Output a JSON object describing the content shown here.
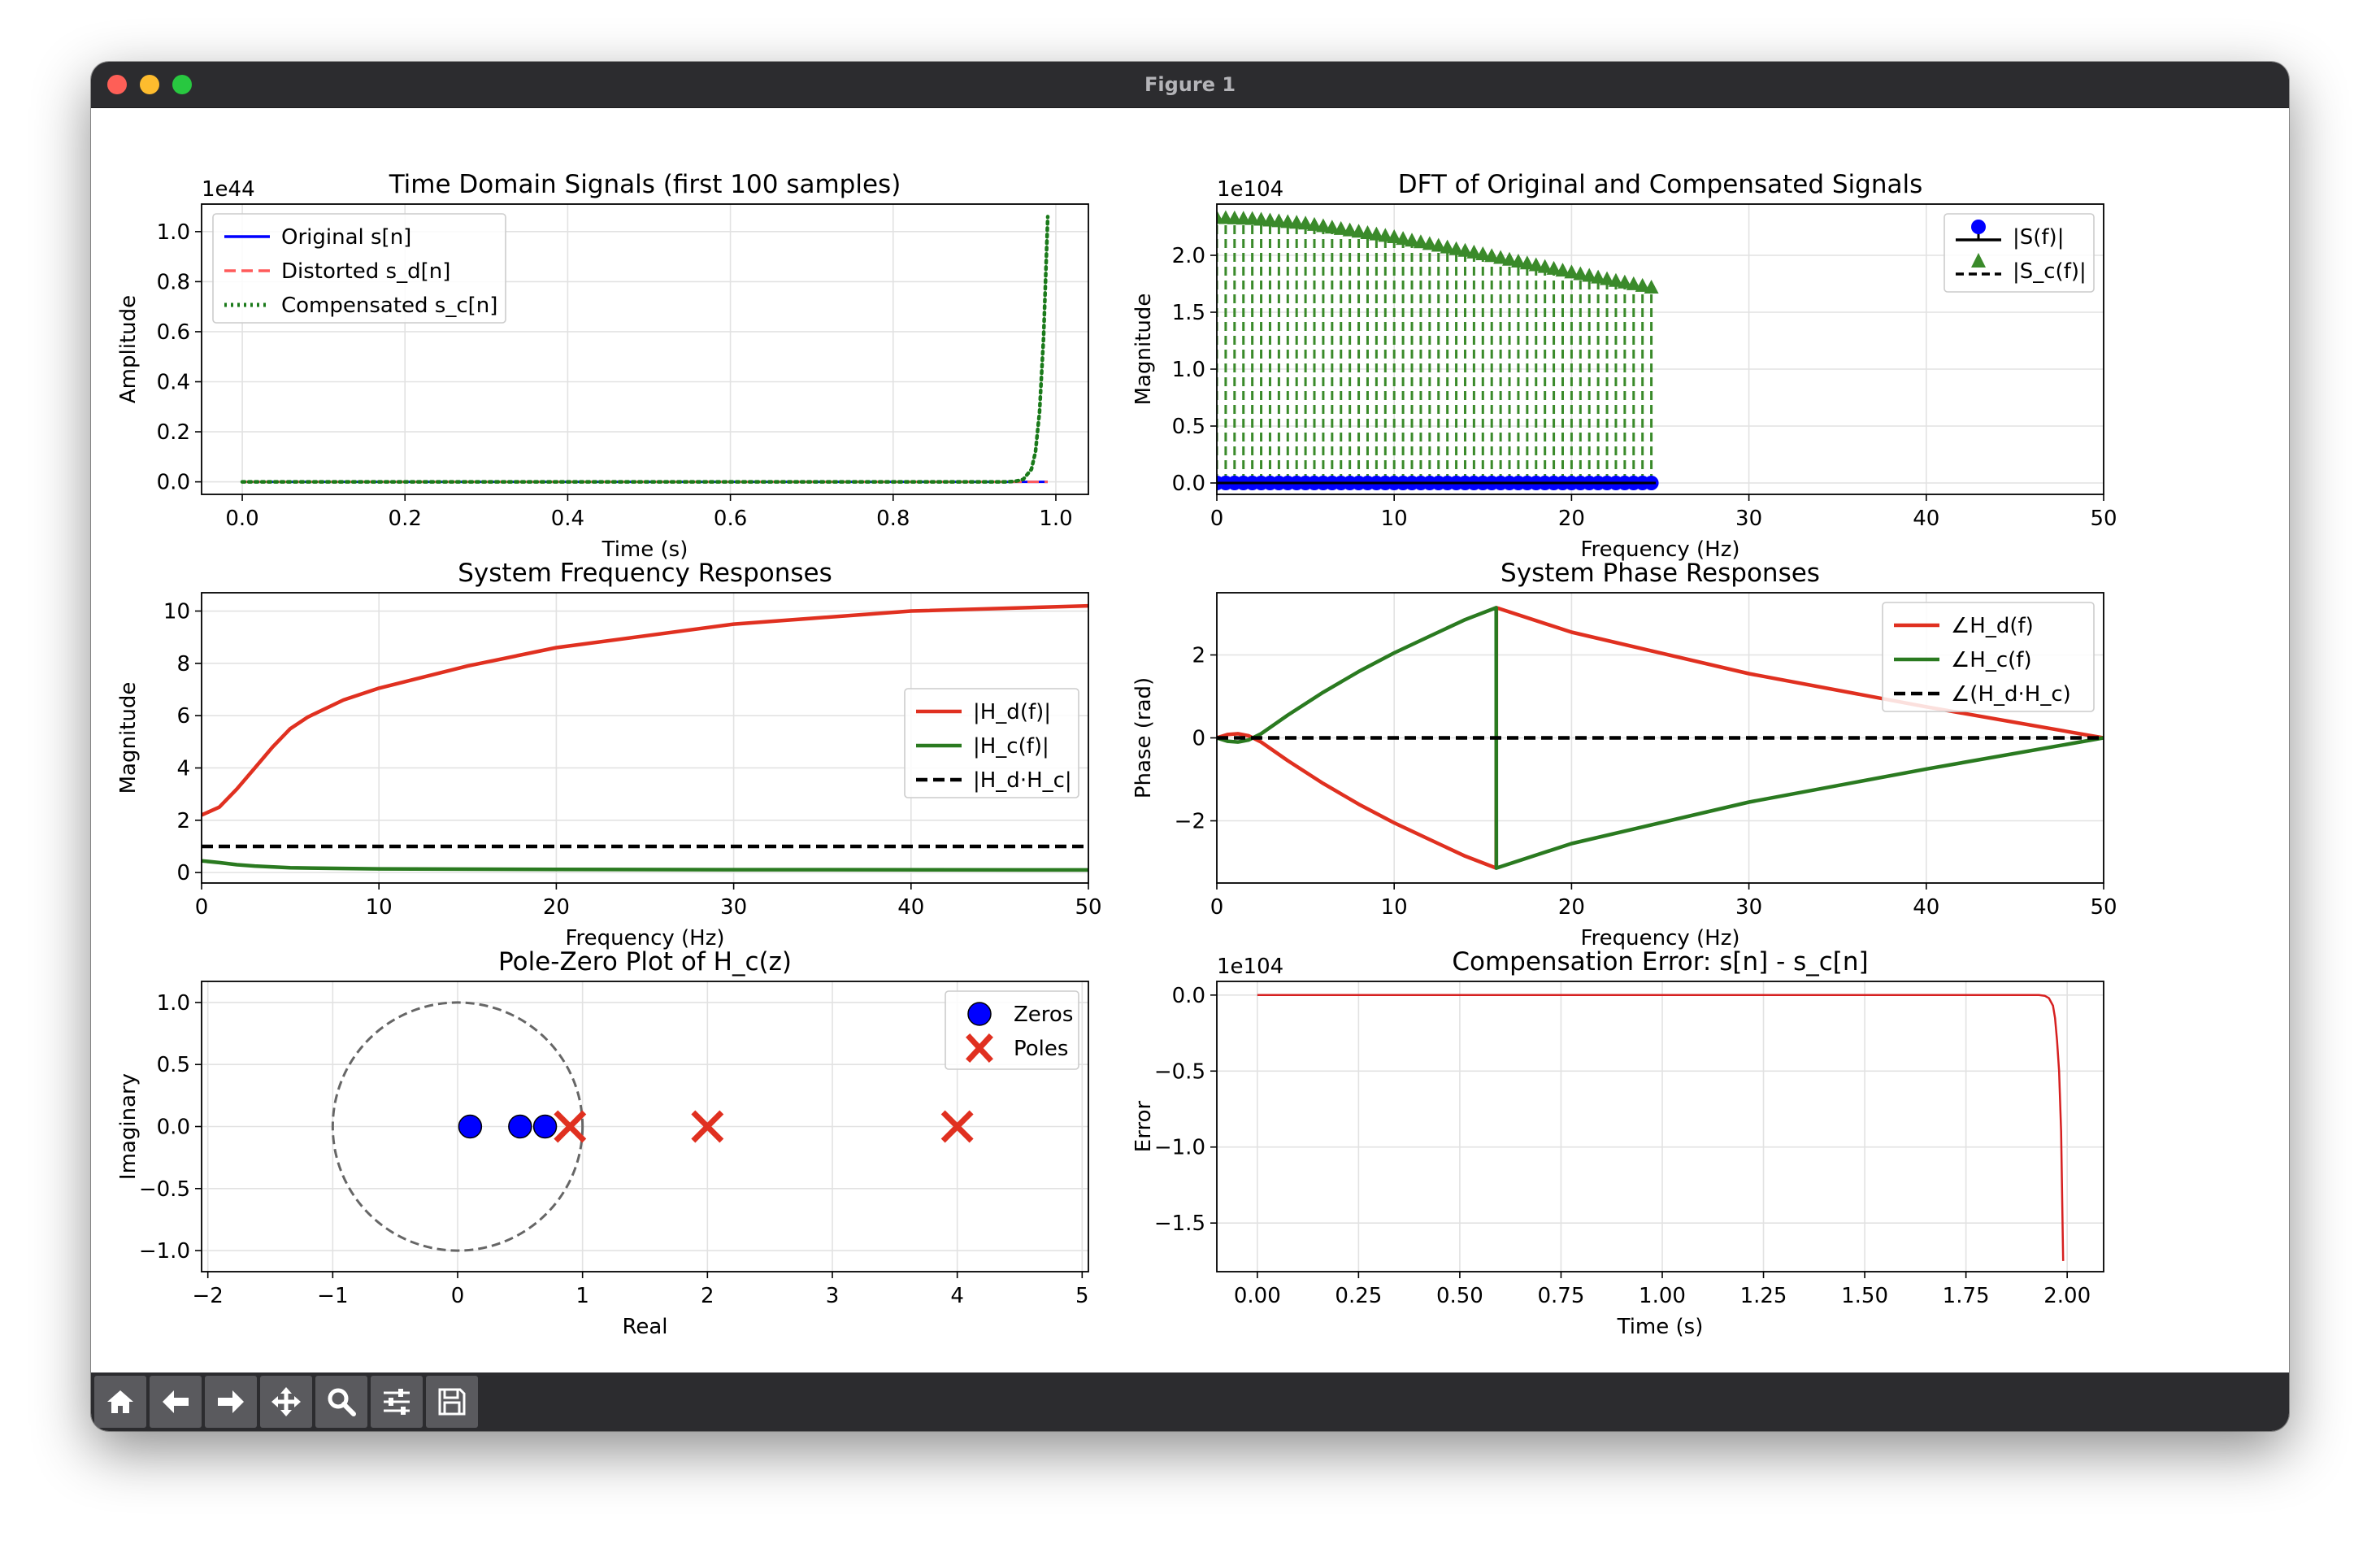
{
  "window": {
    "title": "Figure 1"
  },
  "toolbar": {
    "buttons": [
      {
        "name": "home",
        "icon": "home-icon"
      },
      {
        "name": "back",
        "icon": "arrow-left-icon"
      },
      {
        "name": "forward",
        "icon": "arrow-right-icon"
      },
      {
        "name": "pan",
        "icon": "move-icon"
      },
      {
        "name": "zoom",
        "icon": "magnifier-icon"
      },
      {
        "name": "configure",
        "icon": "sliders-icon"
      },
      {
        "name": "save",
        "icon": "floppy-disk-icon"
      }
    ]
  },
  "chart_data": [
    {
      "id": "time-domain",
      "type": "line",
      "title": "Time Domain Signals (first 100 samples)",
      "xlabel": "Time (s)",
      "ylabel": "Amplitude",
      "offset_text": "1e44",
      "xlim": [
        -0.05,
        1.04
      ],
      "ylim": [
        -0.05,
        1.11
      ],
      "xticks": [
        0.0,
        0.2,
        0.4,
        0.6,
        0.8,
        1.0
      ],
      "xtick_labels": [
        "0.0",
        "0.2",
        "0.4",
        "0.6",
        "0.8",
        "1.0"
      ],
      "yticks": [
        0.0,
        0.2,
        0.4,
        0.6,
        0.8,
        1.0
      ],
      "ytick_labels": [
        "0.0",
        "0.2",
        "0.4",
        "0.6",
        "0.8",
        "1.0"
      ],
      "grid": true,
      "legend_position": "upper-left",
      "series": [
        {
          "name": "Original s[n]",
          "color": "#0000ff",
          "style": "solid",
          "x": [
            0.0,
            0.99
          ],
          "y": [
            0.0,
            0.0
          ]
        },
        {
          "name": "Distorted s_d[n]",
          "color": "#ff5a5a",
          "style": "dashed",
          "x": [
            0.0,
            0.99
          ],
          "y": [
            0.0,
            0.0
          ]
        },
        {
          "name": "Compensated s_c[n]",
          "color": "#1a7a1a",
          "style": "dotted",
          "x": [
            0.0,
            0.94,
            0.95,
            0.96,
            0.97,
            0.975,
            0.98,
            0.985,
            0.99
          ],
          "y": [
            0.0,
            0.0,
            0.002,
            0.01,
            0.05,
            0.12,
            0.28,
            0.58,
            1.06
          ]
        }
      ]
    },
    {
      "id": "dft",
      "type": "stem",
      "title": "DFT of Original and Compensated Signals",
      "xlabel": "Frequency (Hz)",
      "ylabel": "Magnitude",
      "offset_text": "1e104",
      "xlim": [
        0,
        50
      ],
      "ylim": [
        -0.1,
        2.45
      ],
      "xticks": [
        0,
        10,
        20,
        30,
        40,
        50
      ],
      "xtick_labels": [
        "0",
        "10",
        "20",
        "30",
        "40",
        "50"
      ],
      "yticks": [
        0.0,
        0.5,
        1.0,
        1.5,
        2.0
      ],
      "ytick_labels": [
        "0.0",
        "0.5",
        "1.0",
        "1.5",
        "2.0"
      ],
      "grid": true,
      "legend_position": "upper-right",
      "stem_x_range": [
        0,
        24.75
      ],
      "stem_step": 0.5,
      "series": [
        {
          "name": "|S(f)|",
          "color": "#0000ff",
          "marker": "circle",
          "values": [
            0.0
          ]
        },
        {
          "name": "|S_c(f)|",
          "color": "#3a8a2a",
          "marker": "triangle",
          "curve_x": [
            0,
            2,
            5,
            10,
            15,
            20,
            24.75
          ],
          "curve_y": [
            2.32,
            2.31,
            2.27,
            2.15,
            2.0,
            1.84,
            1.7
          ]
        }
      ]
    },
    {
      "id": "freq-response",
      "type": "line",
      "title": "System Frequency Responses",
      "xlabel": "Frequency (Hz)",
      "ylabel": "Magnitude",
      "xlim": [
        0,
        50
      ],
      "ylim": [
        -0.4,
        10.7
      ],
      "xticks": [
        0,
        10,
        20,
        30,
        40,
        50
      ],
      "xtick_labels": [
        "0",
        "10",
        "20",
        "30",
        "40",
        "50"
      ],
      "yticks": [
        0,
        2,
        4,
        6,
        8,
        10
      ],
      "ytick_labels": [
        "0",
        "2",
        "4",
        "6",
        "8",
        "10"
      ],
      "grid": true,
      "legend_position": "center-right",
      "series": [
        {
          "name": "|H_d(f)|",
          "color": "#e03020",
          "style": "solid",
          "x": [
            0,
            1,
            2,
            3,
            4,
            5,
            6,
            8,
            10,
            15,
            20,
            30,
            40,
            50
          ],
          "y": [
            2.2,
            2.5,
            3.2,
            4.0,
            4.8,
            5.5,
            5.95,
            6.6,
            7.05,
            7.9,
            8.6,
            9.5,
            10.0,
            10.2
          ]
        },
        {
          "name": "|H_c(f)|",
          "color": "#2a7a20",
          "style": "solid",
          "x": [
            0,
            1,
            2,
            3,
            5,
            10,
            20,
            30,
            50
          ],
          "y": [
            0.45,
            0.38,
            0.3,
            0.25,
            0.18,
            0.14,
            0.12,
            0.11,
            0.1
          ]
        },
        {
          "name": "|H_d·H_c|",
          "color": "#000000",
          "style": "dashed",
          "x": [
            0,
            50
          ],
          "y": [
            1.0,
            1.0
          ]
        }
      ]
    },
    {
      "id": "phase-response",
      "type": "line",
      "title": "System Phase Responses",
      "xlabel": "Frequency (Hz)",
      "ylabel": "Phase (rad)",
      "xlim": [
        0,
        50
      ],
      "ylim": [
        -3.5,
        3.5
      ],
      "xticks": [
        0,
        10,
        20,
        30,
        40,
        50
      ],
      "xtick_labels": [
        "0",
        "10",
        "20",
        "30",
        "40",
        "50"
      ],
      "yticks": [
        -2,
        0,
        2
      ],
      "ytick_labels": [
        "−2",
        "0",
        "2"
      ],
      "grid": true,
      "legend_position": "upper-right",
      "series": [
        {
          "name": "∠H_d(f)",
          "color": "#e03020",
          "style": "solid",
          "x": [
            0,
            0.6,
            1.2,
            1.8,
            2.5,
            4,
            6,
            8,
            10,
            12,
            14,
            15.75,
            15.76,
            20,
            30,
            40,
            50
          ],
          "y": [
            0.0,
            0.08,
            0.1,
            0.05,
            -0.1,
            -0.55,
            -1.1,
            -1.6,
            -2.05,
            -2.45,
            -2.85,
            -3.14,
            3.14,
            2.55,
            1.55,
            0.75,
            0.0
          ]
        },
        {
          "name": "∠H_c(f)",
          "color": "#2a7a20",
          "style": "solid",
          "x": [
            0,
            0.6,
            1.2,
            1.8,
            2.5,
            4,
            6,
            8,
            10,
            12,
            14,
            15.75,
            15.76,
            20,
            30,
            40,
            50
          ],
          "y": [
            0.0,
            -0.08,
            -0.1,
            -0.05,
            0.1,
            0.55,
            1.1,
            1.6,
            2.05,
            2.45,
            2.85,
            3.14,
            -3.14,
            -2.55,
            -1.55,
            -0.75,
            0.0
          ]
        },
        {
          "name": "∠(H_d·H_c)",
          "color": "#000000",
          "style": "dashed",
          "x": [
            0,
            50
          ],
          "y": [
            0.0,
            0.0
          ]
        }
      ]
    },
    {
      "id": "pole-zero",
      "type": "scatter",
      "title": "Pole-Zero Plot of H_c(z)",
      "xlabel": "Real",
      "ylabel": "Imaginary",
      "xlim": [
        -2.05,
        5.05
      ],
      "ylim": [
        -1.17,
        1.17
      ],
      "xticks": [
        -2,
        -1,
        0,
        1,
        2,
        3,
        4,
        5
      ],
      "xtick_labels": [
        "−2",
        "−1",
        "0",
        "1",
        "2",
        "3",
        "4",
        "5"
      ],
      "yticks": [
        -1.0,
        -0.5,
        0.0,
        0.5,
        1.0
      ],
      "ytick_labels": [
        "−1.0",
        "−0.5",
        "0.0",
        "0.5",
        "1.0"
      ],
      "grid": true,
      "legend_position": "upper-right",
      "unit_circle": true,
      "series": [
        {
          "name": "Zeros",
          "color": "#0000ff",
          "marker": "circle",
          "points": [
            [
              0.1,
              0.0
            ],
            [
              0.5,
              0.0
            ],
            [
              0.7,
              0.0
            ]
          ]
        },
        {
          "name": "Poles",
          "color": "#e03020",
          "marker": "x",
          "points": [
            [
              0.9,
              0.0
            ],
            [
              2.0,
              0.0
            ],
            [
              4.0,
              0.0
            ]
          ]
        }
      ]
    },
    {
      "id": "error",
      "type": "line",
      "title": "Compensation Error: s[n] - s_c[n]",
      "xlabel": "Time (s)",
      "ylabel": "Error",
      "offset_text": "1e104",
      "xlim": [
        -0.1,
        2.09
      ],
      "ylim": [
        -1.82,
        0.09
      ],
      "xticks": [
        0.0,
        0.25,
        0.5,
        0.75,
        1.0,
        1.25,
        1.5,
        1.75,
        2.0
      ],
      "xtick_labels": [
        "0.00",
        "0.25",
        "0.50",
        "0.75",
        "1.00",
        "1.25",
        "1.50",
        "1.75",
        "2.00"
      ],
      "yticks": [
        0.0,
        -0.5,
        -1.0,
        -1.5
      ],
      "ytick_labels": [
        "0.0",
        "−0.5",
        "−1.0",
        "−1.5"
      ],
      "grid": true,
      "series": [
        {
          "name": "",
          "color": "#d62020",
          "style": "solid",
          "x": [
            0.0,
            1.93,
            1.945,
            1.955,
            1.965,
            1.97,
            1.975,
            1.98,
            1.985,
            1.99
          ],
          "y": [
            0.0,
            0.0,
            -0.005,
            -0.02,
            -0.07,
            -0.15,
            -0.3,
            -0.5,
            -0.9,
            -1.75
          ]
        }
      ]
    }
  ]
}
